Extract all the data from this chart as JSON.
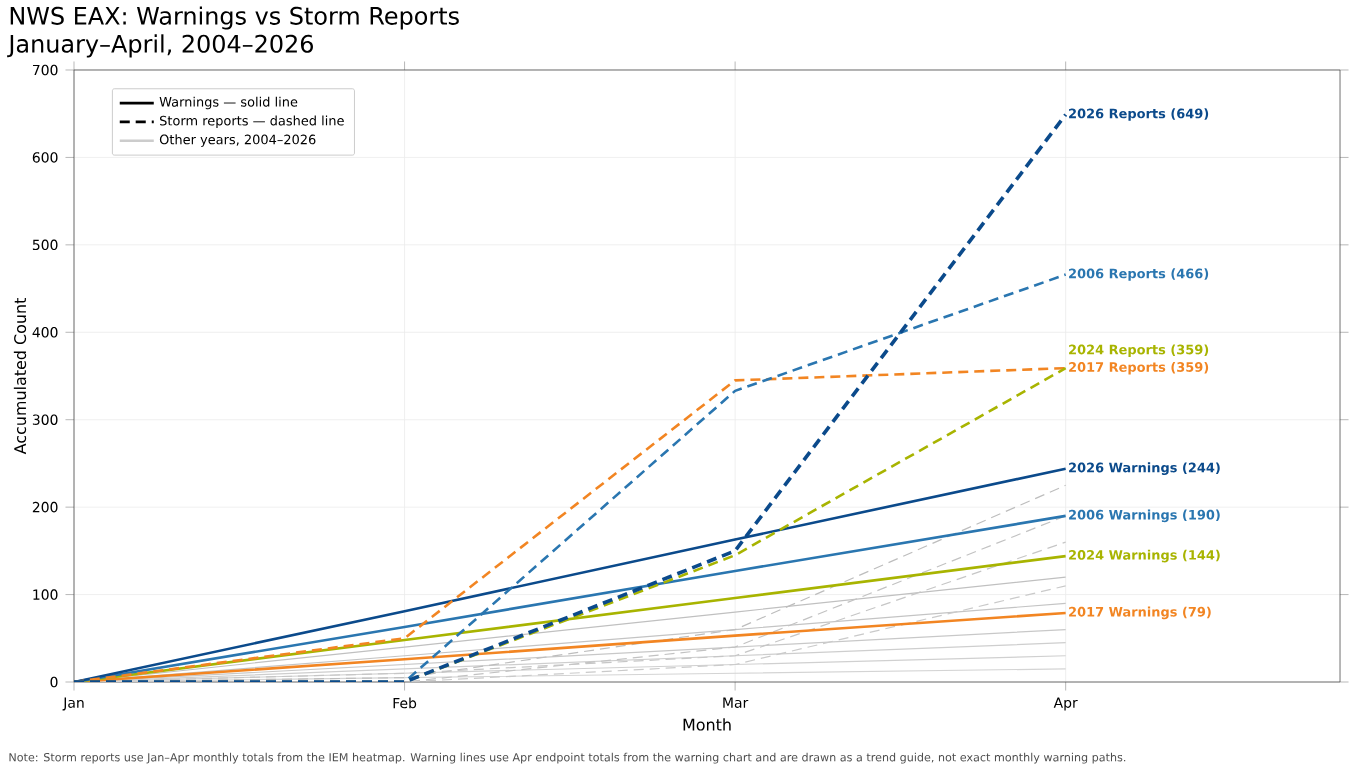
{
  "chart_data": {
    "type": "line",
    "title": "NWS EAX: Warnings vs Storm Reports",
    "subtitle": "January–April, 2004–2026",
    "xlabel": "Month",
    "ylabel": "Accumulated Count",
    "annotations": [
      "Note: Storm reports use Jan–Apr monthly totals from the IEM heatmap. Warning lines use Apr endpoint totals from the warning chart and are drawn as a trend guide, not exact monthly warning paths."
    ],
    "categories": [
      "Jan",
      "Feb",
      "Mar",
      "Apr"
    ],
    "ylim": [
      0,
      700
    ],
    "yticks": [
      0,
      100,
      200,
      300,
      400,
      500,
      600,
      700
    ],
    "grid": true,
    "legend": "top left",
    "marker": "none",
    "series": [
      {
        "name": "Warnings — solid line",
        "color": "#000000",
        "line_style": "solid",
        "values": [
          null,
          null,
          null,
          null
        ]
      },
      {
        "name": "Storm reports — dashed line",
        "color": "#000000",
        "line_style": "dashed",
        "values": [
          null,
          null,
          null,
          null
        ]
      },
      {
        "name": "Other years, 2004–2026",
        "color": "#cccccc",
        "line_style": "solid",
        "values": [
          null,
          null,
          null,
          null
        ]
      },
      {
        "color": "#c0c0c0",
        "line_style": "solid",
        "values": [
          0,
          40,
          80,
          120
        ]
      },
      {
        "color": "#c4c4c4",
        "line_style": "solid",
        "values": [
          0,
          30,
          60,
          90
        ]
      },
      {
        "color": "#c8c8c8",
        "line_style": "solid",
        "values": [
          0,
          20,
          40,
          60
        ]
      },
      {
        "color": "#cecece",
        "line_style": "solid",
        "values": [
          0,
          15,
          30,
          45
        ]
      },
      {
        "color": "#d0d0d0",
        "line_style": "solid",
        "values": [
          0,
          10,
          20,
          30
        ]
      },
      {
        "color": "#d4d4d4",
        "line_style": "solid",
        "values": [
          0,
          5,
          10,
          15
        ]
      },
      {
        "color": "#bdbdbd",
        "line_style": "dashed",
        "values": [
          0,
          5,
          60,
          225
        ]
      },
      {
        "color": "#c2c2c2",
        "line_style": "dashed",
        "values": [
          0,
          0,
          40,
          190
        ]
      },
      {
        "color": "#c6c6c6",
        "line_style": "dashed",
        "values": [
          0,
          10,
          30,
          160
        ]
      },
      {
        "color": "#cacaca",
        "line_style": "dashed",
        "values": [
          0,
          0,
          20,
          110
        ]
      },
      {
        "name": "2017 Warnings (79)",
        "color": "#f28522",
        "line_style": "solid",
        "values": [
          0,
          26,
          53,
          79
        ]
      },
      {
        "name": "2024 Warnings (144)",
        "color": "#a8b400",
        "line_style": "solid",
        "values": [
          0,
          48,
          96,
          144
        ]
      },
      {
        "name": "2006 Warnings (190)",
        "color": "#2a76b0",
        "line_style": "solid",
        "values": [
          0,
          63,
          127,
          190
        ]
      },
      {
        "name": "2026 Warnings (244)",
        "color": "#0b4a8b",
        "line_style": "solid",
        "values": [
          0,
          81,
          163,
          244
        ]
      },
      {
        "name": "2017 Reports (359)",
        "color": "#f28522",
        "line_style": "dashed",
        "values": [
          0,
          50,
          345,
          359
        ]
      },
      {
        "name": "2024 Reports (359)",
        "color": "#a8b400",
        "line_style": "dashed",
        "values": [
          0,
          0,
          145,
          359
        ]
      },
      {
        "name": "2006 Reports (466)",
        "color": "#2a76b0",
        "line_style": "dashed",
        "values": [
          0,
          0,
          333,
          466
        ]
      },
      {
        "name": "2026 Reports (649)",
        "color": "#0b4a8b",
        "line_style": "dashed",
        "values": [
          0,
          0,
          150,
          649
        ]
      }
    ]
  }
}
